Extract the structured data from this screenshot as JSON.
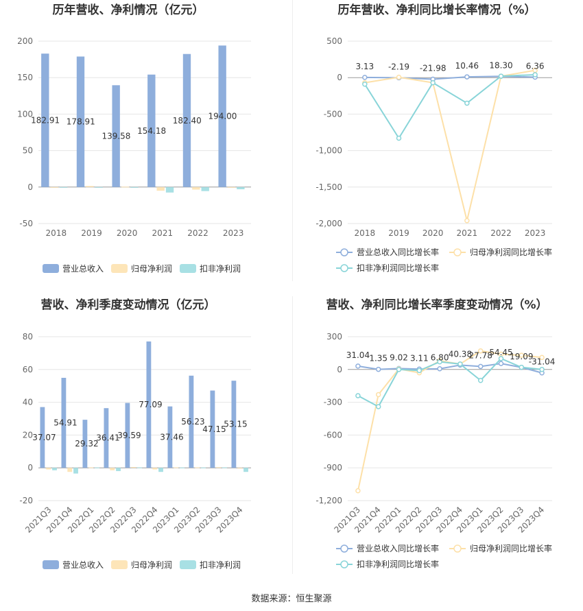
{
  "colors": {
    "revenue": "#8eaedc",
    "net_profit": "#fde5b8",
    "deducted_profit": "#a8e0e4",
    "revenue_line": "#8eaedc",
    "net_line": "#fde0a8",
    "deducted_line": "#88d4d8"
  },
  "footer": {
    "source": "数据来源：恒生聚源"
  },
  "chart_data": [
    {
      "id": "annual-amount",
      "type": "bar",
      "title": "历年营收、净利情况（亿元）",
      "categories": [
        "2018",
        "2019",
        "2020",
        "2021",
        "2022",
        "2023"
      ],
      "ylim": [
        -50,
        200
      ],
      "yticks": [
        -50,
        0,
        50,
        100,
        150,
        200
      ],
      "series": [
        {
          "name": "营业总收入",
          "values": [
            182.91,
            178.91,
            139.58,
            154.18,
            182.4,
            194.0
          ],
          "labels": [
            "182.91",
            "178.91",
            "139.58",
            "154.18",
            "182.40",
            "194.00"
          ]
        },
        {
          "name": "归母净利润",
          "values": [
            -1.0,
            1.5,
            0.5,
            -5.0,
            -3.5,
            -1.0
          ]
        },
        {
          "name": "扣非净利润",
          "values": [
            -0.5,
            -0.8,
            -1.0,
            -7.5,
            -5.5,
            -3.0
          ]
        }
      ]
    },
    {
      "id": "annual-growth",
      "type": "line",
      "title": "历年营收、净利同比增长率情况（%）",
      "categories": [
        "2018",
        "2019",
        "2020",
        "2021",
        "2022",
        "2023"
      ],
      "ylim": [
        -2000,
        500
      ],
      "yticks": [
        -2000,
        -1500,
        -1000,
        -500,
        0,
        500
      ],
      "ytick_labels": [
        "-2,000",
        "-1,500",
        "-1,000",
        "-500",
        "0",
        "500"
      ],
      "series": [
        {
          "name": "营业总收入同比增长率",
          "values": [
            3.13,
            -2.19,
            -21.98,
            10.46,
            18.3,
            6.36
          ],
          "labels": [
            "3.13",
            "-2.19",
            "-21.98",
            "10.46",
            "18.30",
            "6.36"
          ]
        },
        {
          "name": "归母净利润同比增长率",
          "values": [
            -70,
            5,
            -70,
            -1960,
            20,
            100
          ]
        },
        {
          "name": "扣非净利润同比增长率",
          "values": [
            -90,
            -830,
            -70,
            -350,
            20,
            40
          ]
        }
      ]
    },
    {
      "id": "quarter-amount",
      "type": "bar",
      "title": "营收、净利季度变动情况（亿元）",
      "categories": [
        "2021Q3",
        "2021Q4",
        "2022Q1",
        "2022Q2",
        "2022Q3",
        "2022Q4",
        "2023Q1",
        "2023Q2",
        "2023Q3",
        "2023Q4"
      ],
      "ylim": [
        -20,
        80
      ],
      "yticks": [
        -20,
        0,
        20,
        40,
        60,
        80
      ],
      "series": [
        {
          "name": "营业总收入",
          "values": [
            37.07,
            54.91,
            29.32,
            36.41,
            39.59,
            77.09,
            37.46,
            56.23,
            47.15,
            53.15
          ],
          "labels": [
            "37.07",
            "54.91",
            "29.32",
            "36.41",
            "39.59",
            "77.09",
            "37.46",
            "56.23",
            "47.15",
            "53.15"
          ]
        },
        {
          "name": "归母净利润",
          "values": [
            -1.0,
            -2.5,
            0.3,
            -1.5,
            0.5,
            -1.0,
            0.3,
            0.3,
            0.4,
            -0.5
          ]
        },
        {
          "name": "扣非净利润",
          "values": [
            -1.5,
            -3.5,
            0.2,
            -2.0,
            0.3,
            -2.5,
            0.2,
            0.2,
            0.3,
            -2.5
          ]
        }
      ]
    },
    {
      "id": "quarter-growth",
      "type": "line",
      "title": "营收、净利同比增长率季度变动情况（%）",
      "categories": [
        "2021Q3",
        "2021Q4",
        "2022Q1",
        "2022Q2",
        "2022Q3",
        "2022Q4",
        "2023Q1",
        "2023Q2",
        "2023Q3",
        "2023Q4"
      ],
      "ylim": [
        -1200,
        300
      ],
      "yticks": [
        -1200,
        -900,
        -600,
        -300,
        0,
        300
      ],
      "ytick_labels": [
        "-1,200",
        "-900",
        "-600",
        "-300",
        "0",
        "300"
      ],
      "series": [
        {
          "name": "营业总收入同比增长率",
          "values": [
            31.04,
            1.35,
            9.02,
            3.11,
            6.8,
            40.38,
            27.78,
            54.45,
            19.09,
            -31.04
          ],
          "labels": [
            "31.04",
            "1.35",
            "9.02",
            "3.11",
            "6.80",
            "40.38",
            "27.78",
            "54.45",
            "19.09",
            "-31.04"
          ]
        },
        {
          "name": "归母净利润同比增长率",
          "values": [
            -1110,
            -230,
            5,
            -30,
            80,
            50,
            170,
            140,
            130,
            110
          ]
        },
        {
          "name": "扣非净利润同比增长率",
          "values": [
            -240,
            -340,
            0,
            -10,
            70,
            50,
            -100,
            100,
            20,
            0
          ]
        }
      ]
    }
  ]
}
